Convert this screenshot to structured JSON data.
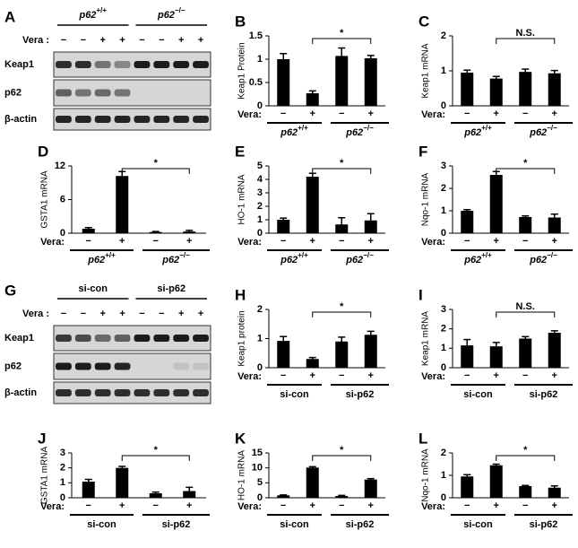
{
  "blots": [
    {
      "panel": "A",
      "groups": [
        {
          "text": "p62",
          "sup": "+/+"
        },
        {
          "text": "p62",
          "sup": "−/−"
        }
      ],
      "treatment_label": "Vera :",
      "treatments": [
        "−",
        "−",
        "+",
        "+",
        "−",
        "−",
        "+",
        "+"
      ],
      "rows": [
        "Keap1",
        "p62",
        "β-actin"
      ]
    },
    {
      "panel": "G",
      "groups": [
        {
          "text": "si-con"
        },
        {
          "text": "si-p62"
        }
      ],
      "treatment_label": "Vera :",
      "treatments": [
        "−",
        "−",
        "+",
        "+",
        "−",
        "−",
        "+",
        "+"
      ],
      "rows": [
        "Keap1",
        "p62",
        "β-actin"
      ]
    }
  ],
  "chart_data": [
    {
      "type": "bar",
      "panel": "B",
      "ylabel": "Keap1 Protein",
      "ylim": [
        0,
        1.5
      ],
      "yticks": [
        0,
        0.5,
        1,
        1.5
      ],
      "values": [
        1.0,
        0.27,
        1.07,
        1.02
      ],
      "errors": [
        0.12,
        0.05,
        0.17,
        0.06
      ],
      "treatment_label": "Vera:",
      "treatments": [
        "−",
        "+",
        "−",
        "+"
      ],
      "groups": [
        {
          "text": "p62",
          "sup": "+/+"
        },
        {
          "text": "p62",
          "sup": "−/−"
        }
      ],
      "annotation": "*"
    },
    {
      "type": "bar",
      "panel": "C",
      "ylabel": "Keap1 mRNA",
      "ylim": [
        0,
        2
      ],
      "yticks": [
        0,
        1,
        2
      ],
      "values": [
        0.95,
        0.78,
        0.97,
        0.93
      ],
      "errors": [
        0.07,
        0.06,
        0.08,
        0.08
      ],
      "treatment_label": "Vera:",
      "treatments": [
        "−",
        "+",
        "−",
        "+"
      ],
      "groups": [
        {
          "text": "p62",
          "sup": "+/+"
        },
        {
          "text": "p62",
          "sup": "−/−"
        }
      ],
      "annotation": "N.S."
    },
    {
      "type": "bar",
      "panel": "D",
      "ylabel": "GSTA1 mRNA",
      "ylim": [
        0,
        12
      ],
      "yticks": [
        0,
        6,
        12
      ],
      "values": [
        0.8,
        10.2,
        0.2,
        0.3
      ],
      "errors": [
        0.2,
        0.8,
        0.1,
        0.2
      ],
      "treatment_label": "Vera:",
      "treatments": [
        "−",
        "+",
        "−",
        "+"
      ],
      "groups": [
        {
          "text": "p62",
          "sup": "+/+"
        },
        {
          "text": "p62",
          "sup": "−/−"
        }
      ],
      "annotation": "*"
    },
    {
      "type": "bar",
      "panel": "E",
      "ylabel": "HO-1 mRNA",
      "ylim": [
        0,
        5
      ],
      "yticks": [
        0,
        1,
        2,
        3,
        4,
        5
      ],
      "values": [
        1.0,
        4.2,
        0.65,
        0.95
      ],
      "errors": [
        0.12,
        0.25,
        0.5,
        0.5
      ],
      "treatment_label": "Vera:",
      "treatments": [
        "−",
        "+",
        "−",
        "+"
      ],
      "groups": [
        {
          "text": "p62",
          "sup": "+/+"
        },
        {
          "text": "p62",
          "sup": "−/−"
        }
      ],
      "annotation": "*"
    },
    {
      "type": "bar",
      "panel": "F",
      "ylabel": "Nqo-1 mRNA",
      "ylim": [
        0,
        3
      ],
      "yticks": [
        0,
        1,
        2,
        3
      ],
      "values": [
        1.0,
        2.6,
        0.72,
        0.7
      ],
      "errors": [
        0.05,
        0.15,
        0.05,
        0.15
      ],
      "treatment_label": "Vera:",
      "treatments": [
        "−",
        "+",
        "−",
        "+"
      ],
      "groups": [
        {
          "text": "p62",
          "sup": "+/+"
        },
        {
          "text": "p62",
          "sup": "−/−"
        }
      ],
      "annotation": "*"
    },
    {
      "type": "bar",
      "panel": "H",
      "ylabel": "Keap1 protein",
      "ylim": [
        0,
        2
      ],
      "yticks": [
        0,
        1,
        2
      ],
      "values": [
        0.92,
        0.3,
        0.9,
        1.13
      ],
      "errors": [
        0.15,
        0.05,
        0.15,
        0.12
      ],
      "treatment_label": "Vera:",
      "treatments": [
        "−",
        "+",
        "−",
        "+"
      ],
      "groups": [
        {
          "text": "si-con"
        },
        {
          "text": "si-p62"
        }
      ],
      "annotation": "*"
    },
    {
      "type": "bar",
      "panel": "I",
      "ylabel": "Keap1 mRNA",
      "ylim": [
        0,
        3
      ],
      "yticks": [
        0,
        1,
        2,
        3
      ],
      "values": [
        1.15,
        1.1,
        1.5,
        1.8
      ],
      "errors": [
        0.3,
        0.2,
        0.1,
        0.1
      ],
      "treatment_label": "Vera:",
      "treatments": [
        "−",
        "+",
        "−",
        "+"
      ],
      "groups": [
        {
          "text": "si-con"
        },
        {
          "text": "si-p62"
        }
      ],
      "annotation": "N.S."
    },
    {
      "type": "bar",
      "panel": "J",
      "ylabel": "GSTA1 mRNA",
      "ylim": [
        0,
        3
      ],
      "yticks": [
        0,
        1,
        2,
        3
      ],
      "values": [
        1.08,
        2.0,
        0.3,
        0.45
      ],
      "errors": [
        0.15,
        0.1,
        0.08,
        0.25
      ],
      "treatment_label": "Vera:",
      "treatments": [
        "−",
        "+",
        "−",
        "+"
      ],
      "groups": [
        {
          "text": "si-con"
        },
        {
          "text": "si-p62"
        }
      ],
      "annotation": "*"
    },
    {
      "type": "bar",
      "panel": "K",
      "ylabel": "HO-1 mRNA",
      "ylim": [
        0,
        15
      ],
      "yticks": [
        0,
        5,
        10,
        15
      ],
      "values": [
        0.8,
        10.1,
        0.6,
        6.1
      ],
      "errors": [
        0.15,
        0.3,
        0.2,
        0.3
      ],
      "treatment_label": "Vera:",
      "treatments": [
        "−",
        "+",
        "−",
        "+"
      ],
      "groups": [
        {
          "text": "si-con"
        },
        {
          "text": "si-p62"
        }
      ],
      "annotation": "*"
    },
    {
      "type": "bar",
      "panel": "L",
      "ylabel": "Nqo-1 mRNA",
      "ylim": [
        0,
        2
      ],
      "yticks": [
        0,
        1,
        2
      ],
      "values": [
        0.95,
        1.45,
        0.52,
        0.45
      ],
      "errors": [
        0.08,
        0.05,
        0.03,
        0.08
      ],
      "treatment_label": "Vera:",
      "treatments": [
        "−",
        "+",
        "−",
        "+"
      ],
      "groups": [
        {
          "text": "si-con"
        },
        {
          "text": "si-p62"
        }
      ],
      "annotation": "*"
    }
  ]
}
